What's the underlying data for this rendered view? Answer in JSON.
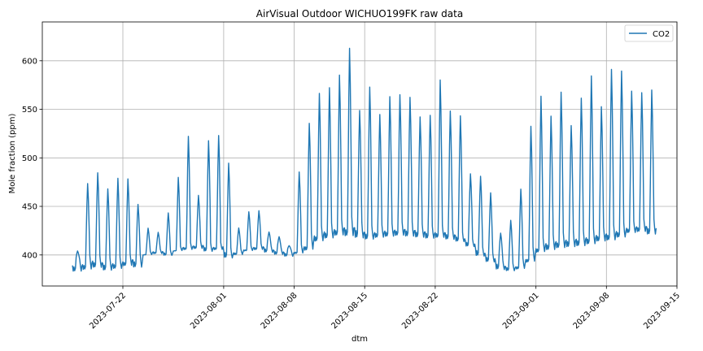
{
  "chart_data": {
    "type": "line",
    "title": "AirVisual Outdoor WICHUO199FK raw data",
    "xlabel": "dtm",
    "ylabel": "Mole fraction (ppm)",
    "grid": true,
    "legend_position": "top-right",
    "xlim": [
      "2023-07-14",
      "2023-09-15"
    ],
    "ylim": [
      368,
      640
    ],
    "x_ticks": [
      "2023-07-22",
      "2023-08-01",
      "2023-08-08",
      "2023-08-15",
      "2023-08-22",
      "2023-09-01",
      "2023-09-08",
      "2023-09-15"
    ],
    "y_ticks": [
      400,
      450,
      500,
      550,
      600
    ],
    "colors": {
      "CO2": "#1f77b4"
    },
    "series": [
      {
        "name": "CO2",
        "x": [
          "2023-07-17",
          "2023-07-18",
          "2023-07-19",
          "2023-07-20",
          "2023-07-21",
          "2023-07-22",
          "2023-07-23",
          "2023-07-24",
          "2023-07-25",
          "2023-07-26",
          "2023-07-27",
          "2023-07-28",
          "2023-07-29",
          "2023-07-30",
          "2023-07-31",
          "2023-08-01",
          "2023-08-02",
          "2023-08-03",
          "2023-08-04",
          "2023-08-05",
          "2023-08-06",
          "2023-08-07",
          "2023-08-08",
          "2023-08-09",
          "2023-08-10",
          "2023-08-11",
          "2023-08-12",
          "2023-08-13",
          "2023-08-14",
          "2023-08-15",
          "2023-08-16",
          "2023-08-17",
          "2023-08-18",
          "2023-08-19",
          "2023-08-20",
          "2023-08-21",
          "2023-08-22",
          "2023-08-23",
          "2023-08-24",
          "2023-08-25",
          "2023-08-26",
          "2023-08-27",
          "2023-08-28",
          "2023-08-29",
          "2023-08-30",
          "2023-08-31",
          "2023-09-01",
          "2023-09-02",
          "2023-09-03",
          "2023-09-04",
          "2023-09-05",
          "2023-09-06",
          "2023-09-07",
          "2023-09-08",
          "2023-09-09",
          "2023-09-10",
          "2023-09-11",
          "2023-09-12"
        ],
        "min": [
          382,
          384,
          386,
          383,
          385,
          388,
          386,
          400,
          401,
          399,
          404,
          405,
          406,
          403,
          405,
          396,
          400,
          404,
          405,
          402,
          400,
          398,
          401,
          404,
          413,
          416,
          419,
          418,
          416,
          415,
          417,
          418,
          419,
          418,
          417,
          416,
          417,
          415,
          413,
          408,
          398,
          392,
          384,
          383,
          385,
          392,
          402,
          404,
          406,
          407,
          408,
          410,
          413,
          414,
          417,
          422,
          423,
          420
        ],
        "max": [
          405,
          481,
          493,
          475,
          487,
          486,
          457,
          430,
          425,
          447,
          487,
          533,
          466,
          528,
          534,
          503,
          430,
          448,
          449,
          425,
          420,
          410,
          493,
          547,
          580,
          586,
          600,
          630,
          560,
          587,
          556,
          576,
          578,
          575,
          553,
          555,
          595,
          560,
          555,
          490,
          488,
          470,
          425,
          440,
          475,
          545,
          578,
          555,
          582,
          544,
          575,
          600,
          565,
          607,
          605,
          582,
          580,
          583
        ],
        "close": [
          395,
          400,
          398,
          396,
          397,
          402,
          400,
          405,
          406,
          404,
          410,
          412,
          414,
          410,
          412,
          404,
          406,
          410,
          412,
          408,
          406,
          404,
          412,
          425,
          430,
          432,
          436,
          438,
          430,
          428,
          430,
          431,
          433,
          432,
          430,
          428,
          429,
          426,
          420,
          414,
          405,
          400,
          392,
          390,
          398,
          410,
          418,
          420,
          422,
          423,
          424,
          426,
          428,
          430,
          432,
          434,
          436,
          435
        ]
      }
    ]
  }
}
